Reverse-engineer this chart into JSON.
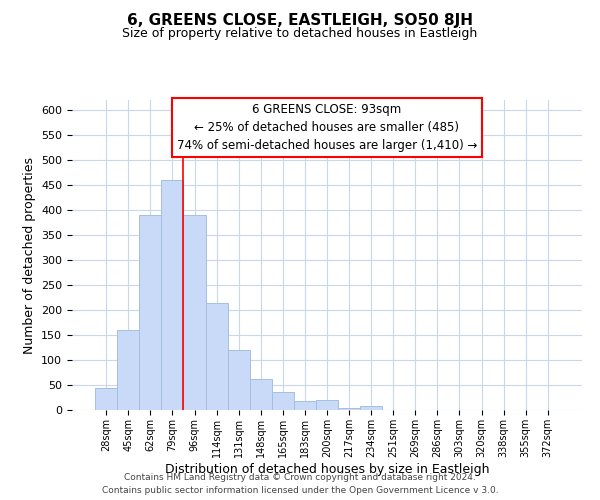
{
  "title": "6, GREENS CLOSE, EASTLEIGH, SO50 8JH",
  "subtitle": "Size of property relative to detached houses in Eastleigh",
  "xlabel": "Distribution of detached houses by size in Eastleigh",
  "ylabel": "Number of detached properties",
  "bar_color": "#c9daf8",
  "bar_edge_color": "#a4bfe0",
  "grid_color": "#c8d8ea",
  "background_color": "#ffffff",
  "categories": [
    "28sqm",
    "45sqm",
    "62sqm",
    "79sqm",
    "96sqm",
    "114sqm",
    "131sqm",
    "148sqm",
    "165sqm",
    "183sqm",
    "200sqm",
    "217sqm",
    "234sqm",
    "251sqm",
    "269sqm",
    "286sqm",
    "303sqm",
    "320sqm",
    "338sqm",
    "355sqm",
    "372sqm"
  ],
  "values": [
    45,
    160,
    390,
    460,
    390,
    215,
    120,
    63,
    37,
    18,
    20,
    5,
    8,
    0,
    0,
    0,
    0,
    0,
    0,
    0,
    0
  ],
  "ylim": [
    0,
    620
  ],
  "yticks": [
    0,
    50,
    100,
    150,
    200,
    250,
    300,
    350,
    400,
    450,
    500,
    550,
    600
  ],
  "red_line_index": 4,
  "annotation_title": "6 GREENS CLOSE: 93sqm",
  "annotation_line1": "← 25% of detached houses are smaller (485)",
  "annotation_line2": "74% of semi-detached houses are larger (1,410) →",
  "footer_line1": "Contains HM Land Registry data © Crown copyright and database right 2024.",
  "footer_line2": "Contains public sector information licensed under the Open Government Licence v 3.0."
}
